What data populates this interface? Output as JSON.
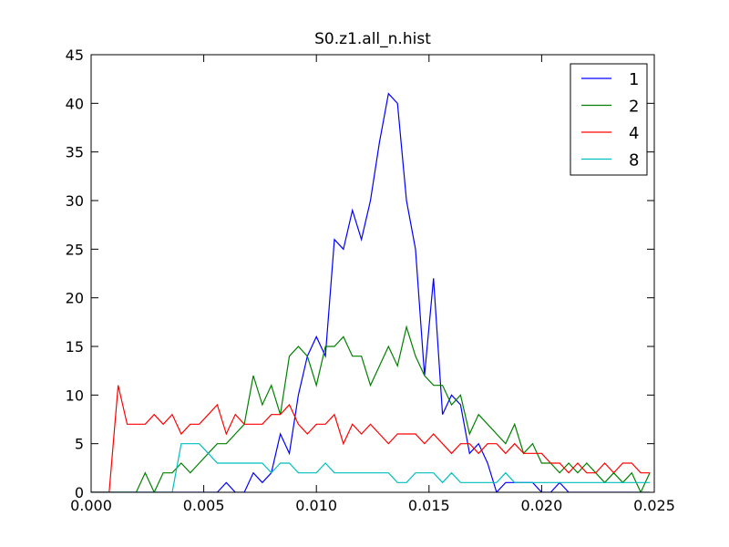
{
  "chart_data": {
    "type": "line",
    "title": "S0.z1.all_n.hist",
    "x": [
      0,
      0.0004,
      0.0008,
      0.0012,
      0.0016,
      0.002,
      0.0024,
      0.0028,
      0.0032,
      0.0036,
      0.004,
      0.0044,
      0.0048,
      0.0052,
      0.0056,
      0.006,
      0.0064,
      0.0068,
      0.0072,
      0.0076,
      0.008,
      0.0084,
      0.0088,
      0.0092,
      0.0096,
      0.01,
      0.0104,
      0.0108,
      0.0112,
      0.0116,
      0.012,
      0.0124,
      0.0128,
      0.0132,
      0.0136,
      0.014,
      0.0144,
      0.0148,
      0.0152,
      0.0156,
      0.016,
      0.0164,
      0.0168,
      0.0172,
      0.0176,
      0.018,
      0.0184,
      0.0188,
      0.0192,
      0.0196,
      0.02,
      0.0204,
      0.0208,
      0.0212,
      0.0216,
      0.022,
      0.0224,
      0.0228,
      0.0232,
      0.0236,
      0.024,
      0.0244,
      0.0248
    ],
    "series": [
      {
        "name": "1",
        "color": "#0000ff",
        "values": [
          0,
          0,
          0,
          0,
          0,
          0,
          0,
          0,
          0,
          0,
          0,
          0,
          0,
          0,
          0,
          1,
          0,
          0,
          2,
          1,
          2,
          6,
          4,
          10,
          14,
          16,
          14,
          26,
          25,
          29,
          26,
          30,
          36,
          41,
          40,
          30,
          25,
          12,
          22,
          8,
          10,
          9,
          4,
          5,
          3,
          0,
          1,
          1,
          1,
          1,
          0,
          0,
          1,
          0,
          0,
          0,
          0,
          0,
          0,
          0,
          0,
          0,
          0
        ]
      },
      {
        "name": "2",
        "color": "#008000",
        "values": [
          0,
          0,
          0,
          0,
          0,
          0,
          2,
          0,
          2,
          2,
          3,
          2,
          3,
          4,
          5,
          5,
          6,
          7,
          12,
          9,
          11,
          8,
          14,
          15,
          14,
          11,
          15,
          15,
          16,
          14,
          14,
          11,
          13,
          15,
          13,
          17,
          14,
          12,
          11,
          11,
          9,
          10,
          6,
          8,
          7,
          6,
          5,
          7,
          4,
          5,
          3,
          3,
          2,
          3,
          2,
          3,
          2,
          1,
          2,
          1,
          2,
          0,
          2
        ]
      },
      {
        "name": "4",
        "color": "#ff0000",
        "values": [
          0,
          0,
          0,
          11,
          7,
          7,
          7,
          8,
          7,
          8,
          6,
          7,
          7,
          8,
          9,
          6,
          8,
          7,
          7,
          7,
          8,
          8,
          9,
          7,
          6,
          7,
          7,
          8,
          5,
          7,
          6,
          7,
          6,
          5,
          6,
          6,
          6,
          5,
          6,
          5,
          4,
          5,
          5,
          4,
          5,
          5,
          4,
          5,
          4,
          4,
          4,
          3,
          3,
          2,
          3,
          2,
          2,
          3,
          2,
          3,
          3,
          2,
          2
        ]
      },
      {
        "name": "8",
        "color": "#00bfbf",
        "values": [
          0,
          0,
          0,
          0,
          0,
          0,
          0,
          0,
          0,
          0,
          5,
          5,
          5,
          4,
          3,
          3,
          3,
          3,
          3,
          3,
          2,
          3,
          3,
          2,
          2,
          2,
          3,
          2,
          2,
          2,
          2,
          2,
          2,
          2,
          1,
          1,
          2,
          2,
          2,
          1,
          2,
          1,
          1,
          1,
          1,
          1,
          2,
          1,
          1,
          1,
          1,
          1,
          1,
          1,
          1,
          1,
          1,
          1,
          1,
          1,
          1,
          1,
          1
        ]
      }
    ],
    "xlim": [
      0,
      0.025
    ],
    "xticks": [
      {
        "value": 0,
        "label": "0.000"
      },
      {
        "value": 0.005,
        "label": "0.005"
      },
      {
        "value": 0.01,
        "label": "0.010"
      },
      {
        "value": 0.015,
        "label": "0.015"
      },
      {
        "value": 0.02,
        "label": "0.020"
      },
      {
        "value": 0.025,
        "label": "0.025"
      }
    ],
    "ylim": [
      0,
      45
    ],
    "yticks": [
      0,
      5,
      10,
      15,
      20,
      25,
      30,
      35,
      40,
      45
    ],
    "legend": "upper right"
  }
}
